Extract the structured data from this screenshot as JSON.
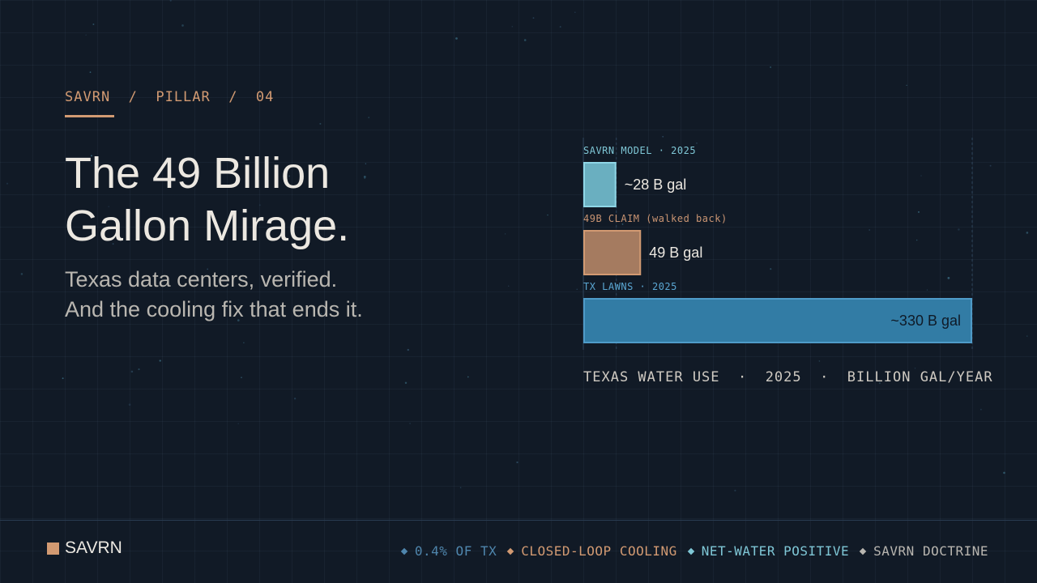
{
  "eyebrow": "SAVRN  /  PILLAR  /  04",
  "headline": {
    "line1": "The 49 Billion",
    "line2": "Gallon Mirage."
  },
  "subhead": {
    "line1": "Texas data centers, verified.",
    "line2": "And the cooling fix that ends it."
  },
  "chart_data": {
    "type": "bar",
    "orientation": "horizontal",
    "bars": [
      {
        "caption": "SAVRN MODEL · 2025",
        "value": 28,
        "label": "~28 B gal",
        "fill": "#6aafc0",
        "stroke": "#8fd6e6",
        "caption_color": "#7fc7d6"
      },
      {
        "caption": "49B CLAIM (walked back)",
        "value": 49,
        "label": "49 B gal",
        "fill": "#a57b60",
        "stroke": "#d29a72",
        "caption_color": "#c99472"
      },
      {
        "caption": "TX LAWNS · 2025",
        "value": 330,
        "label": "~330 B gal",
        "fill": "#327ca5",
        "stroke": "#4f9bc8",
        "caption_color": "#5aa6d2"
      }
    ],
    "xlim": [
      0,
      330
    ],
    "caption": "TEXAS WATER USE  ·  2025  ·  BILLION GAL/YEAR"
  },
  "footer": {
    "brand": "SAVRN",
    "pills": [
      {
        "label": "0.4% OF TX",
        "color": "#4f86ad"
      },
      {
        "label": "CLOSED-LOOP COOLING",
        "color": "#d29a72"
      },
      {
        "label": "NET-WATER POSITIVE",
        "color": "#7fc7d6"
      },
      {
        "label": "SAVRN DOCTRINE",
        "color": "#b9b6b0"
      }
    ]
  },
  "colors": {
    "background": "#111a26",
    "accent": "#d29a72",
    "headline": "#ece8e1"
  }
}
